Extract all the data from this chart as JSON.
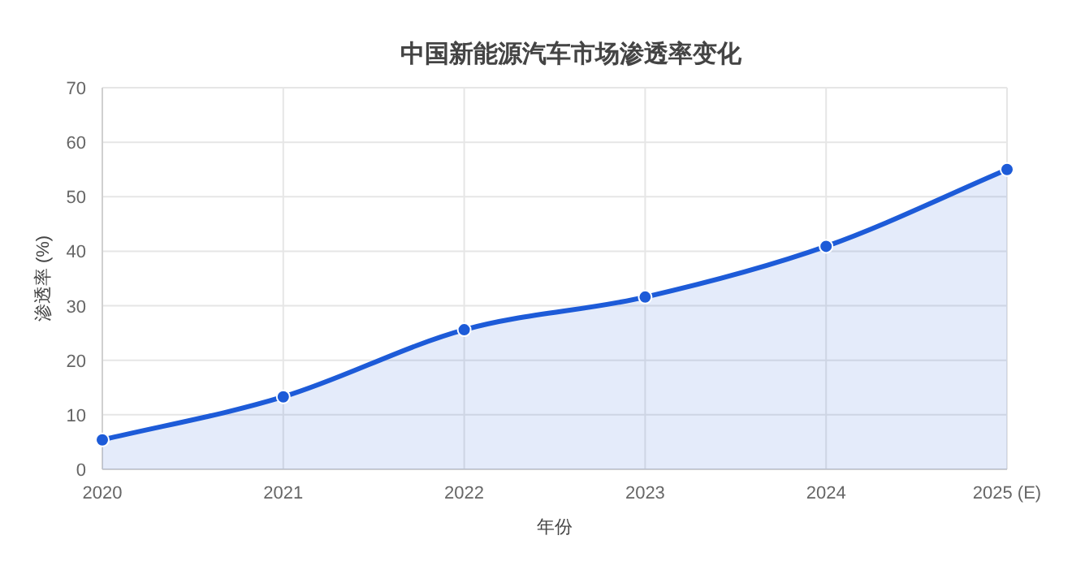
{
  "chart_data": {
    "type": "area",
    "title": "中国新能源汽车市场渗透率变化",
    "xlabel": "年份",
    "ylabel": "渗透率 (%)",
    "categories": [
      "2020",
      "2021",
      "2022",
      "2023",
      "2024",
      "2025 (E)"
    ],
    "series": [
      {
        "color": "#1d5bd8",
        "values": [
          5.4,
          13.3,
          25.6,
          31.6,
          40.9,
          55
        ]
      }
    ],
    "ylim": [
      0,
      70
    ],
    "yticks": [
      0,
      10,
      20,
      30,
      40,
      50,
      60,
      70
    ],
    "grid": true,
    "marker": "circle"
  }
}
